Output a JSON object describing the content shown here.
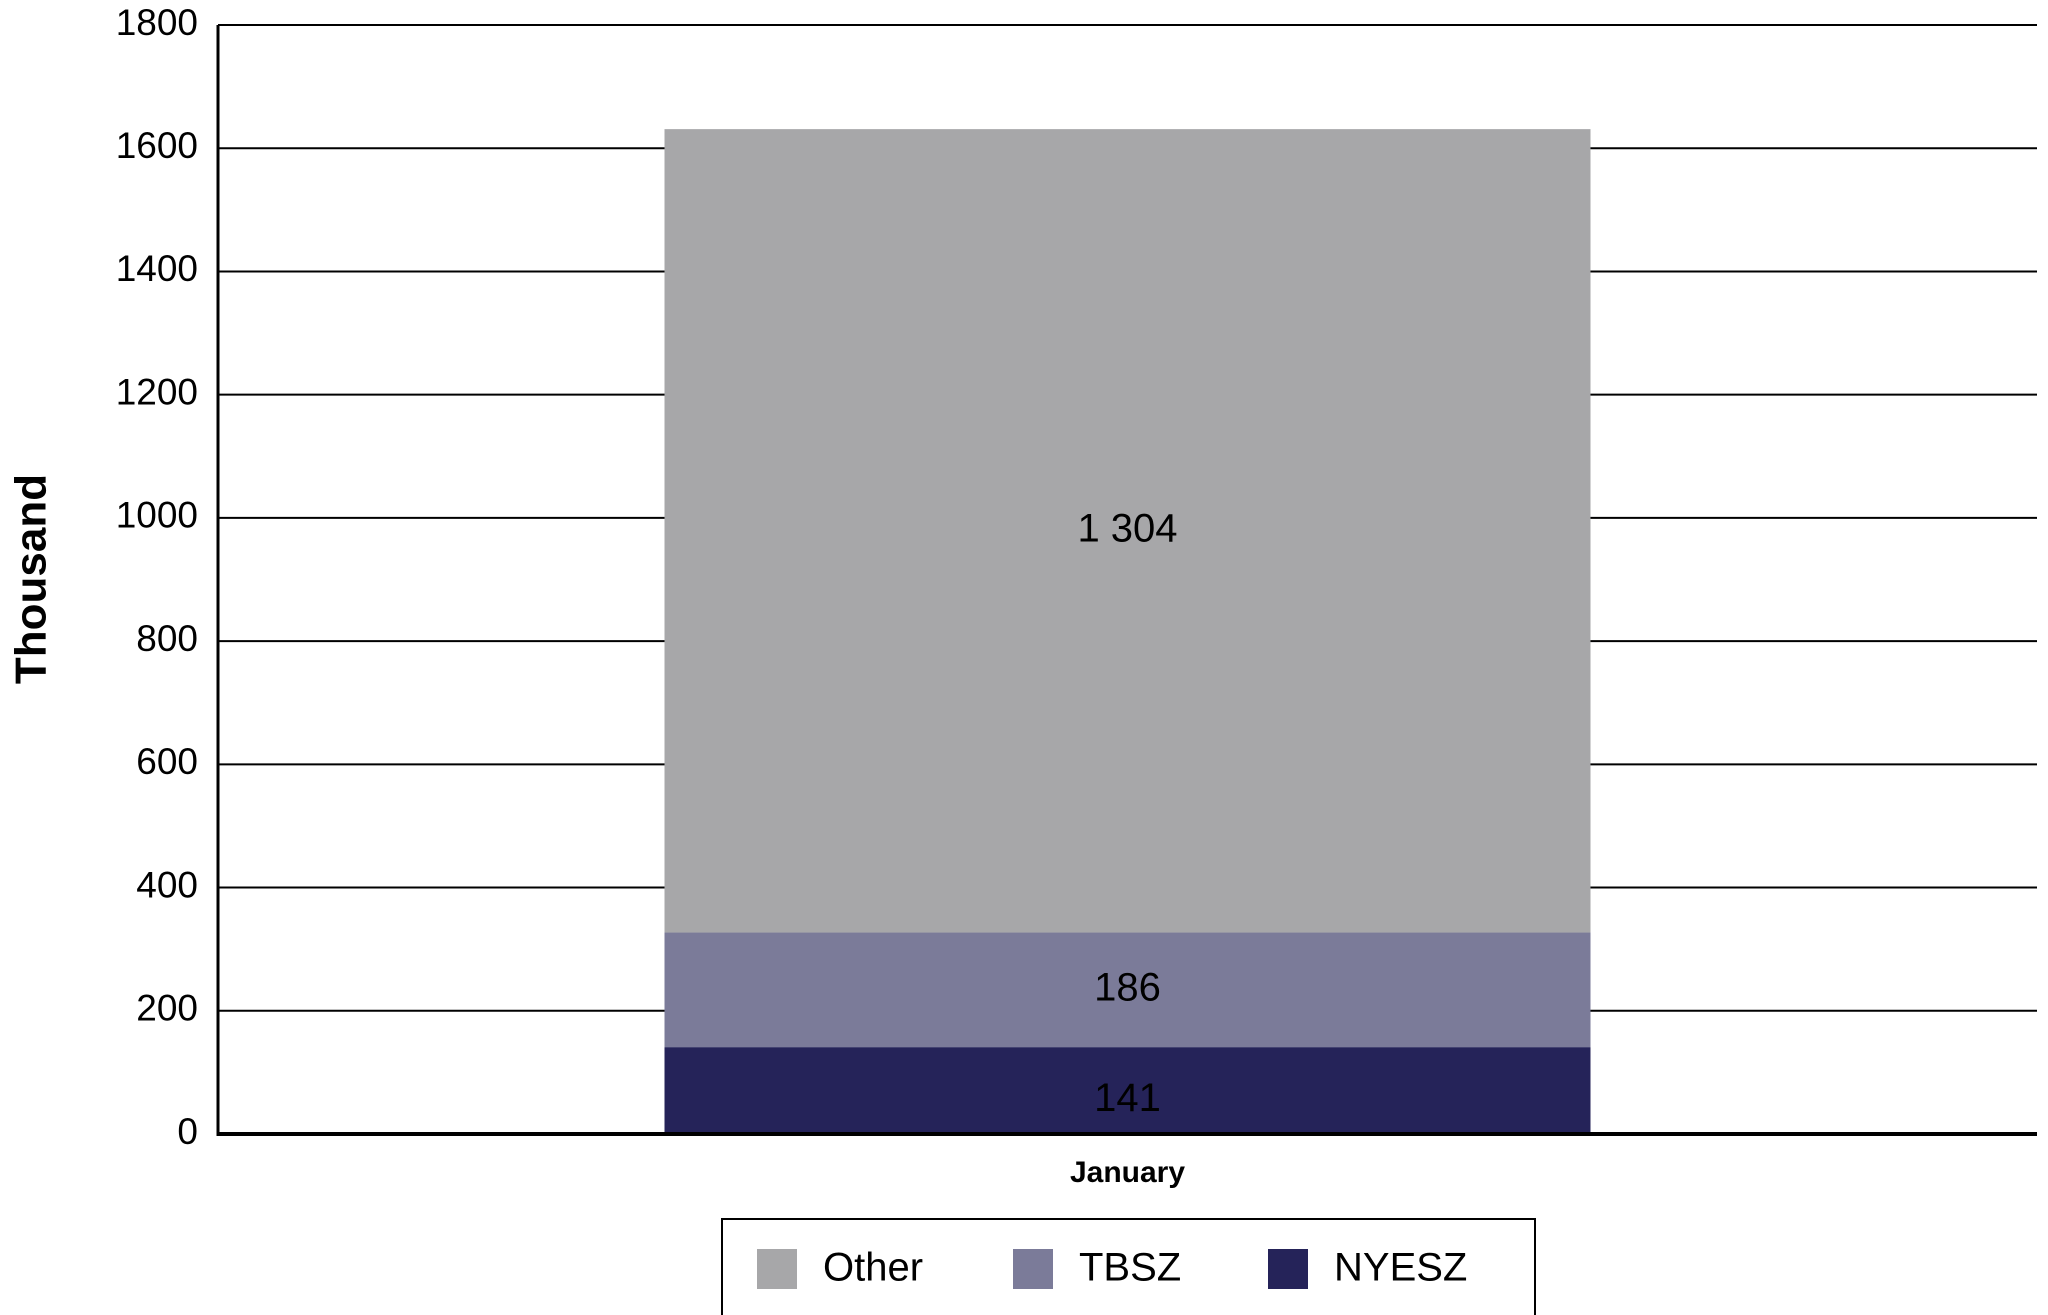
{
  "chart_data": {
    "type": "stacked_bar",
    "y_label": "Thousand",
    "categories": [
      "January"
    ],
    "series": [
      {
        "name": "NYESZ",
        "color": "#252359",
        "values": [
          141
        ]
      },
      {
        "name": "TBSZ",
        "color": "#7b7b99",
        "values": [
          186
        ]
      },
      {
        "name": "Other",
        "color": "#a7a7a9",
        "values": [
          1304
        ],
        "value_labels": [
          "1 304"
        ]
      }
    ],
    "ylim": [
      0,
      1800
    ],
    "yticks": [
      0,
      200,
      400,
      600,
      800,
      1000,
      1200,
      1400,
      1600,
      1800
    ],
    "grid": true,
    "legend": "bottom"
  }
}
